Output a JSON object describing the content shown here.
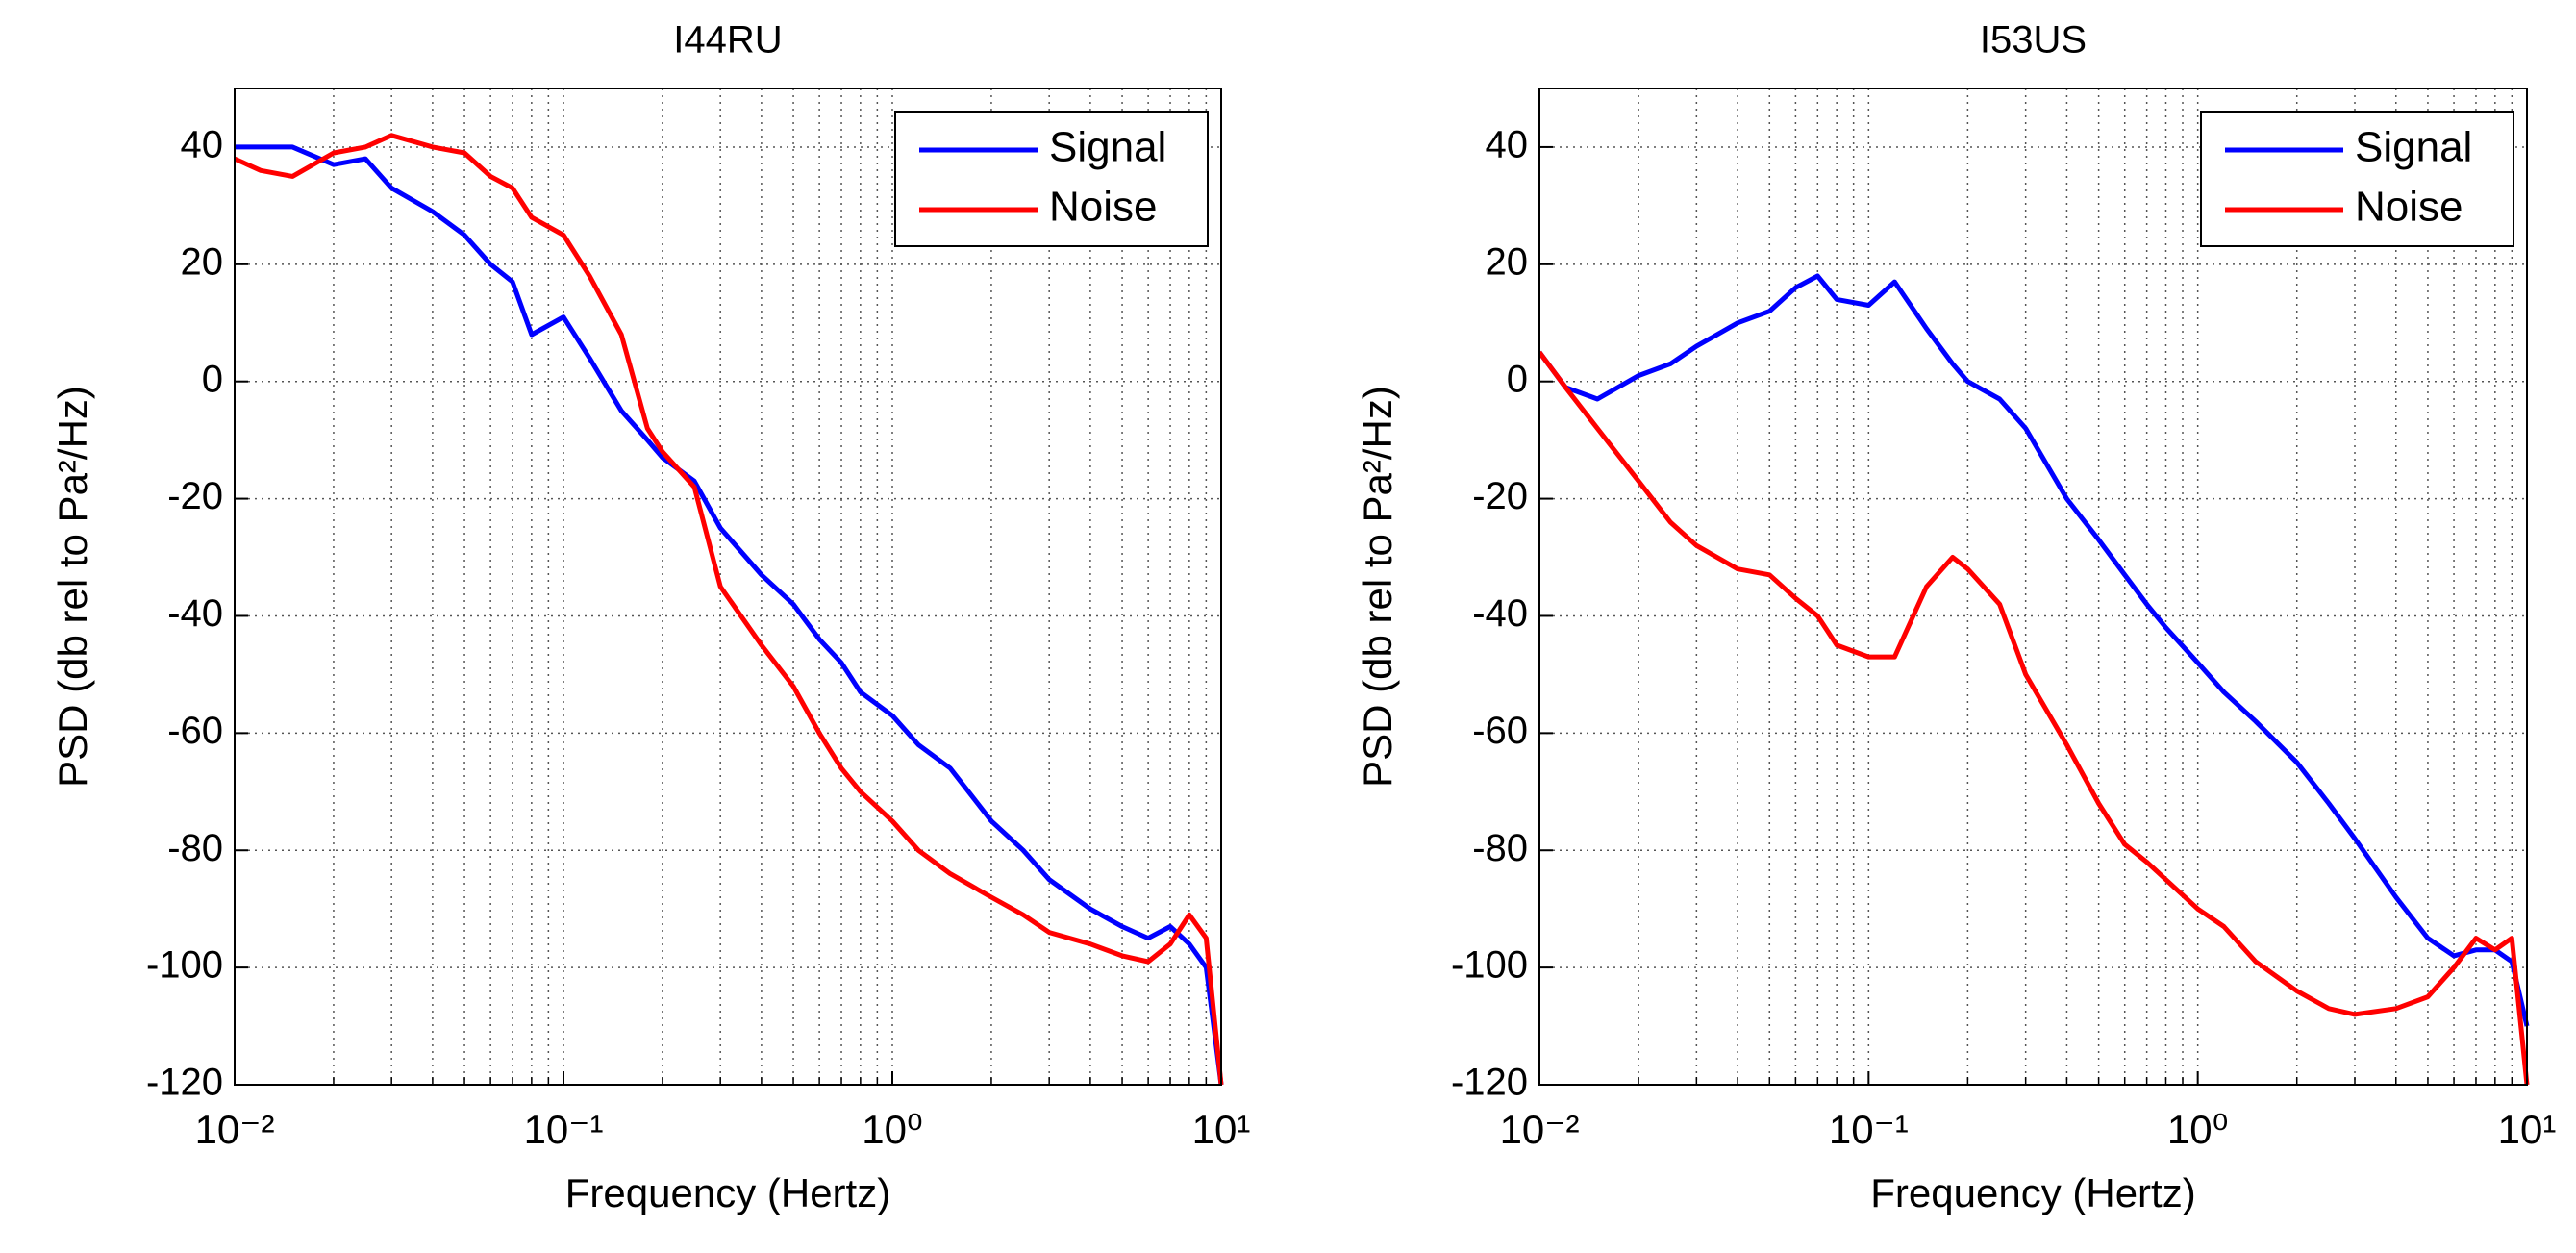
{
  "chart_data": [
    {
      "type": "line",
      "title": "I44RU",
      "xlabel": "Frequency (Hertz)",
      "ylabel": "PSD (db rel to Pa²/Hz)",
      "xscale": "log",
      "xlim": [
        0.01,
        10
      ],
      "xticks": [
        {
          "value": 0.01,
          "label": "10⁻²"
        },
        {
          "value": 0.1,
          "label": "10⁻¹"
        },
        {
          "value": 1,
          "label": "10⁰"
        },
        {
          "value": 10,
          "label": "10¹"
        }
      ],
      "ylim": [
        -120,
        50
      ],
      "yticks": [
        40,
        20,
        0,
        -20,
        -40,
        -60,
        -80,
        -100,
        -120
      ],
      "grid": true,
      "legend": "upper right",
      "x": [
        0.01,
        0.012,
        0.015,
        0.02,
        0.025,
        0.03,
        0.04,
        0.05,
        0.06,
        0.07,
        0.08,
        0.1,
        0.12,
        0.15,
        0.18,
        0.2,
        0.25,
        0.3,
        0.4,
        0.5,
        0.6,
        0.7,
        0.8,
        1,
        1.2,
        1.5,
        2,
        2.5,
        3,
        4,
        5,
        6,
        7,
        8,
        9,
        10
      ],
      "series": [
        {
          "name": "Signal",
          "color": "#0000ff",
          "values": [
            40,
            40,
            40,
            37,
            38,
            33,
            29,
            25,
            20,
            17,
            8,
            11,
            4,
            -5,
            -10,
            -13,
            -17,
            -25,
            -33,
            -38,
            -44,
            -48,
            -53,
            -57,
            -62,
            -66,
            -75,
            -80,
            -85,
            -90,
            -93,
            -95,
            -93,
            -96,
            -100,
            -120
          ]
        },
        {
          "name": "Noise",
          "color": "#ff0000",
          "values": [
            38,
            36,
            35,
            39,
            40,
            42,
            40,
            39,
            35,
            33,
            28,
            25,
            18,
            8,
            -8,
            -12,
            -18,
            -35,
            -45,
            -52,
            -60,
            -66,
            -70,
            -75,
            -80,
            -84,
            -88,
            -91,
            -94,
            -96,
            -98,
            -99,
            -96,
            -91,
            -95,
            -120
          ]
        }
      ]
    },
    {
      "type": "line",
      "title": "I53US",
      "xlabel": "Frequency (Hertz)",
      "ylabel": "PSD (db rel to Pa²/Hz)",
      "xscale": "log",
      "xlim": [
        0.01,
        10
      ],
      "xticks": [
        {
          "value": 0.01,
          "label": "10⁻²"
        },
        {
          "value": 0.1,
          "label": "10⁻¹"
        },
        {
          "value": 1,
          "label": "10⁰"
        },
        {
          "value": 10,
          "label": "10¹"
        }
      ],
      "ylim": [
        -120,
        50
      ],
      "yticks": [
        40,
        20,
        0,
        -20,
        -40,
        -60,
        -80,
        -100,
        -120
      ],
      "grid": true,
      "legend": "upper right",
      "x": [
        0.01,
        0.012,
        0.015,
        0.02,
        0.025,
        0.03,
        0.04,
        0.05,
        0.06,
        0.07,
        0.08,
        0.1,
        0.12,
        0.15,
        0.18,
        0.2,
        0.25,
        0.3,
        0.4,
        0.5,
        0.6,
        0.7,
        0.8,
        1,
        1.2,
        1.5,
        2,
        2.5,
        3,
        4,
        5,
        6,
        7,
        8,
        9,
        10
      ],
      "series": [
        {
          "name": "Signal",
          "color": "#0000ff",
          "values": [
            5,
            -1,
            -3,
            1,
            3,
            6,
            10,
            12,
            16,
            18,
            14,
            13,
            17,
            9,
            3,
            0,
            -3,
            -8,
            -20,
            -27,
            -33,
            -38,
            -42,
            -48,
            -53,
            -58,
            -65,
            -72,
            -78,
            -88,
            -95,
            -98,
            -97,
            -97,
            -99,
            -110
          ]
        },
        {
          "name": "Noise",
          "color": "#ff0000",
          "values": [
            5,
            -1,
            -8,
            -17,
            -24,
            -28,
            -32,
            -33,
            -37,
            -40,
            -45,
            -47,
            -47,
            -35,
            -30,
            -32,
            -38,
            -50,
            -62,
            -72,
            -79,
            -82,
            -85,
            -90,
            -93,
            -99,
            -104,
            -107,
            -108,
            -107,
            -105,
            -100,
            -95,
            -97,
            -95,
            -120
          ]
        }
      ]
    }
  ]
}
